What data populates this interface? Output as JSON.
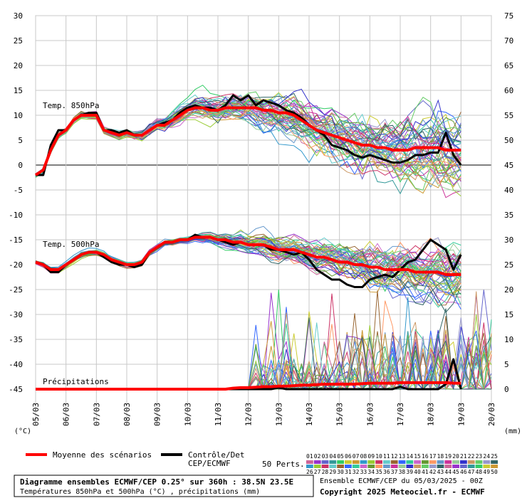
{
  "chart_data": {
    "type": "line",
    "x_dates": [
      "05/03",
      "06/03",
      "07/03",
      "08/03",
      "09/03",
      "10/03",
      "11/03",
      "12/03",
      "13/03",
      "14/03",
      "15/03",
      "16/03",
      "17/03",
      "18/03",
      "19/03",
      "20/03"
    ],
    "left_axis_ticks": [
      30,
      25,
      20,
      15,
      10,
      5,
      0,
      -5,
      -10,
      -15,
      -20,
      -25,
      -30,
      -35,
      -40,
      -45
    ],
    "right_axis_ticks": [
      75,
      70,
      65,
      60,
      55,
      50,
      45,
      40,
      35,
      30,
      25,
      20,
      15,
      10,
      5,
      0
    ],
    "left_unit": "(°C)",
    "right_unit": "(mm)",
    "t850_label": "Temp. 850hPa",
    "t500_label": "Temp. 500hPa",
    "precip_label": "Précipitations",
    "ylim_temp": [
      -45,
      30
    ],
    "ylim_precip": [
      0,
      75
    ],
    "time_step_hours": 6,
    "t850": {
      "mean": [
        -2,
        -1,
        3,
        6,
        7,
        9,
        10,
        10,
        10,
        7,
        6.5,
        6,
        6.5,
        6,
        6,
        7,
        8,
        8,
        9,
        10,
        11,
        11.5,
        11.5,
        11,
        11,
        11.5,
        11.5,
        11.5,
        11.5,
        11.5,
        11,
        11,
        10.5,
        10.5,
        10,
        9,
        8,
        7,
        6.5,
        6,
        5.5,
        5,
        4.5,
        4,
        4,
        3.5,
        3.5,
        3,
        3,
        3,
        3.5,
        3.5,
        3.5,
        3.5,
        3,
        3,
        3
      ],
      "control": [
        -2,
        -2,
        4,
        7,
        7,
        9,
        10,
        10.5,
        10.5,
        7,
        7,
        6.5,
        7,
        6,
        6,
        7,
        8,
        8.5,
        9,
        10.5,
        11.5,
        12,
        11.5,
        11.5,
        11,
        12,
        14,
        13,
        14,
        12,
        13,
        12.5,
        12,
        11,
        10.5,
        9.5,
        8,
        7,
        6,
        4,
        3.5,
        3,
        2,
        1.5,
        2,
        1.5,
        1,
        0.5,
        0.5,
        1,
        2,
        2,
        2.5,
        2.5,
        6.5,
        2,
        0
      ]
    },
    "t500": {
      "mean": [
        -19.5,
        -20,
        -21,
        -21,
        -20,
        -19,
        -18,
        -17.5,
        -17.5,
        -18,
        -19,
        -19.5,
        -20,
        -20,
        -19.5,
        -17.5,
        -16.5,
        -15.5,
        -15.5,
        -15,
        -15,
        -14.5,
        -14.5,
        -14.5,
        -15,
        -15,
        -15.5,
        -15.5,
        -16,
        -16,
        -16,
        -16.5,
        -17,
        -17,
        -17,
        -17.5,
        -18,
        -18.5,
        -18.5,
        -19,
        -19.5,
        -19.5,
        -20,
        -20,
        -20.5,
        -20.5,
        -21,
        -21,
        -21,
        -21,
        -21.5,
        -21.5,
        -21.5,
        -21.5,
        -22,
        -22,
        -22
      ],
      "control": [
        -19.5,
        -20,
        -21.5,
        -21.5,
        -20,
        -19,
        -18,
        -17.5,
        -17.5,
        -18.5,
        -19.5,
        -20,
        -20,
        -20.5,
        -20,
        -17.5,
        -16.5,
        -15.5,
        -15.5,
        -15,
        -15,
        -14,
        -14.5,
        -14.5,
        -15,
        -15.5,
        -16,
        -15.5,
        -16,
        -16,
        -16,
        -17,
        -17,
        -17.5,
        -18,
        -17.5,
        -19,
        -21,
        -22,
        -23,
        -23,
        -24,
        -24.5,
        -24.5,
        -23,
        -22.5,
        -22,
        -22.5,
        -21,
        -19.5,
        -19,
        -17,
        -15,
        -16,
        -17,
        -21,
        -18
      ]
    },
    "precip": {
      "mean": [
        0,
        0,
        0,
        0,
        0,
        0,
        0,
        0,
        0,
        0,
        0,
        0,
        0,
        0,
        0,
        0,
        0,
        0,
        0,
        0,
        0,
        0,
        0,
        0,
        0,
        0,
        0.2,
        0.3,
        0.3,
        0.4,
        0.5,
        0.5,
        0.6,
        0.6,
        0.7,
        0.8,
        0.8,
        0.9,
        1,
        1,
        1,
        1,
        1,
        1.1,
        1.2,
        1.2,
        1.2,
        1.2,
        1.3,
        1.3,
        1.3,
        1.3,
        1.3,
        1.3,
        1.3,
        1.2,
        1.2
      ],
      "control": [
        0,
        0,
        0,
        0,
        0,
        0,
        0,
        0,
        0,
        0,
        0,
        0,
        0,
        0,
        0,
        0,
        0,
        0,
        0,
        0,
        0,
        0,
        0,
        0,
        0,
        0,
        0,
        0,
        0,
        0,
        0,
        0,
        0.3,
        0,
        0,
        0,
        0,
        0,
        0,
        0,
        0,
        0,
        0,
        0,
        0,
        0,
        0,
        0,
        0.5,
        0,
        0,
        0,
        0,
        0,
        1,
        6,
        0
      ]
    },
    "legend": {
      "mean_label": "Moyenne des scénarios",
      "control_label_1": "Contrôle/Det",
      "control_label_2": "CEP/ECMWF",
      "perts_label": "50 Perts.",
      "pert_numbers_top": [
        "01",
        "02",
        "03",
        "04",
        "05",
        "06",
        "07",
        "08",
        "09",
        "10",
        "11",
        "12",
        "13",
        "14",
        "15",
        "16",
        "17",
        "18",
        "19",
        "20",
        "21",
        "22",
        "23",
        "24",
        "25"
      ],
      "pert_numbers_bottom": [
        "26",
        "27",
        "28",
        "29",
        "30",
        "31",
        "32",
        "33",
        "34",
        "35",
        "36",
        "37",
        "38",
        "39",
        "40",
        "41",
        "42",
        "43",
        "44",
        "45",
        "46",
        "47",
        "48",
        "49",
        "50"
      ]
    },
    "colors": {
      "mean": "#ff0000",
      "control": "#000000",
      "grid": "#c8c8c8",
      "zero_line": "#808080",
      "member_palette": [
        "#cc6699",
        "#9933cc",
        "#6666cc",
        "#339999",
        "#33cc66",
        "#cccc33",
        "#cc9933",
        "#3399cc",
        "#99cc33",
        "#cc3366",
        "#66cccc",
        "#996633",
        "#3366ff",
        "#33cc99",
        "#cc66cc",
        "#669933",
        "#ff9966",
        "#6699cc",
        "#cc3399",
        "#99cc99",
        "#3333cc",
        "#cc9966",
        "#66cc66",
        "#9999cc",
        "#336666"
      ]
    }
  },
  "footer": {
    "title": "Diagramme ensembles ECMWF/CEP 0.25° sur 360h : 38.5N 23.5E",
    "subtitle": "Températures 850hPa et 500hPa (°C) , précipitations (mm)",
    "run_info": "Ensemble ECMWF/CEP du 05/03/2025 - 00Z",
    "copyright": "Copyright 2025 Meteociel.fr - ECMWF"
  }
}
